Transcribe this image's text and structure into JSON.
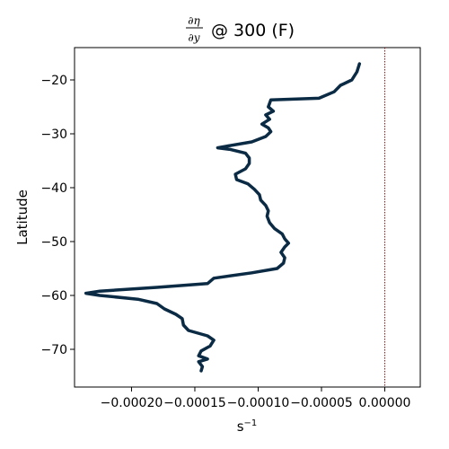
{
  "chart_data": {
    "type": "line",
    "title": {
      "numerator": "∂η",
      "denominator": "∂y",
      "suffix": "@ 300 (F)"
    },
    "xlabel": "s",
    "xlabel_exponent": "−1",
    "ylabel": "Latitude",
    "xlim": [
      -0.000245,
      2.8e-05
    ],
    "ylim": [
      -77,
      -14
    ],
    "xticks": [
      -0.0002,
      -0.00015,
      -0.0001,
      -5e-05,
      0.0
    ],
    "xtick_labels": [
      "−0.00020",
      "−0.00015",
      "−0.00010",
      "−0.00005",
      "0.00000"
    ],
    "yticks": [
      -70,
      -60,
      -50,
      -40,
      -30,
      -20
    ],
    "ytick_labels": [
      "−70",
      "−60",
      "−50",
      "−40",
      "−30",
      "−20"
    ],
    "grid": false,
    "reference_line": {
      "x": 0.0,
      "color": "#8b1a1a",
      "style": "dotted"
    },
    "series": [
      {
        "color": "#0b2a44",
        "points": [
          [
            -2e-05,
            -17.0
          ],
          [
            -2.2e-05,
            -18.5
          ],
          [
            -2.6e-05,
            -20.0
          ],
          [
            -3.5e-05,
            -21.0
          ],
          [
            -4e-05,
            -22.2
          ],
          [
            -5.2e-05,
            -23.4
          ],
          [
            -9e-05,
            -23.7
          ],
          [
            -9.2e-05,
            -25.0
          ],
          [
            -8.8e-05,
            -25.8
          ],
          [
            -9.4e-05,
            -26.5
          ],
          [
            -9.1e-05,
            -27.3
          ],
          [
            -9.7e-05,
            -28.2
          ],
          [
            -9.2e-05,
            -28.9
          ],
          [
            -9e-05,
            -29.6
          ],
          [
            -9.4e-05,
            -30.5
          ],
          [
            -0.000105,
            -31.5
          ],
          [
            -0.000125,
            -32.3
          ],
          [
            -0.000132,
            -32.6
          ],
          [
            -0.000122,
            -32.9
          ],
          [
            -0.00011,
            -33.6
          ],
          [
            -0.000107,
            -34.5
          ],
          [
            -0.000107,
            -35.5
          ],
          [
            -0.00011,
            -36.5
          ],
          [
            -0.000118,
            -37.5
          ],
          [
            -0.000117,
            -38.5
          ],
          [
            -0.000108,
            -39.3
          ],
          [
            -0.000103,
            -40.3
          ],
          [
            -9.9e-05,
            -41.3
          ],
          [
            -9.8e-05,
            -42.3
          ],
          [
            -9.4e-05,
            -43.3
          ],
          [
            -9.2e-05,
            -44.3
          ],
          [
            -9.3e-05,
            -45.3
          ],
          [
            -9.1e-05,
            -46.5
          ],
          [
            -8.7e-05,
            -47.6
          ],
          [
            -8.1e-05,
            -48.6
          ],
          [
            -7.9e-05,
            -49.5
          ],
          [
            -7.6e-05,
            -50.3
          ],
          [
            -7.9e-05,
            -51.0
          ],
          [
            -8.2e-05,
            -52.0
          ],
          [
            -7.9e-05,
            -53.0
          ],
          [
            -8e-05,
            -54.0
          ],
          [
            -8.5e-05,
            -55.0
          ],
          [
            -0.000105,
            -55.8
          ],
          [
            -0.000135,
            -56.8
          ],
          [
            -0.00014,
            -57.8
          ],
          [
            -0.00018,
            -58.5
          ],
          [
            -0.000225,
            -59.2
          ],
          [
            -0.000236,
            -59.6
          ],
          [
            -0.000225,
            -60.0
          ],
          [
            -0.000195,
            -60.7
          ],
          [
            -0.00018,
            -61.5
          ],
          [
            -0.000174,
            -62.5
          ],
          [
            -0.000165,
            -63.5
          ],
          [
            -0.00016,
            -64.3
          ],
          [
            -0.000159,
            -65.5
          ],
          [
            -0.000155,
            -66.5
          ],
          [
            -0.00014,
            -67.5
          ],
          [
            -0.000135,
            -68.3
          ],
          [
            -0.000138,
            -69.4
          ],
          [
            -0.000145,
            -70.3
          ],
          [
            -0.000147,
            -71.2
          ],
          [
            -0.00014,
            -71.8
          ],
          [
            -0.000147,
            -72.3
          ],
          [
            -0.000144,
            -73.2
          ],
          [
            -0.000145,
            -74.0
          ]
        ]
      }
    ]
  }
}
